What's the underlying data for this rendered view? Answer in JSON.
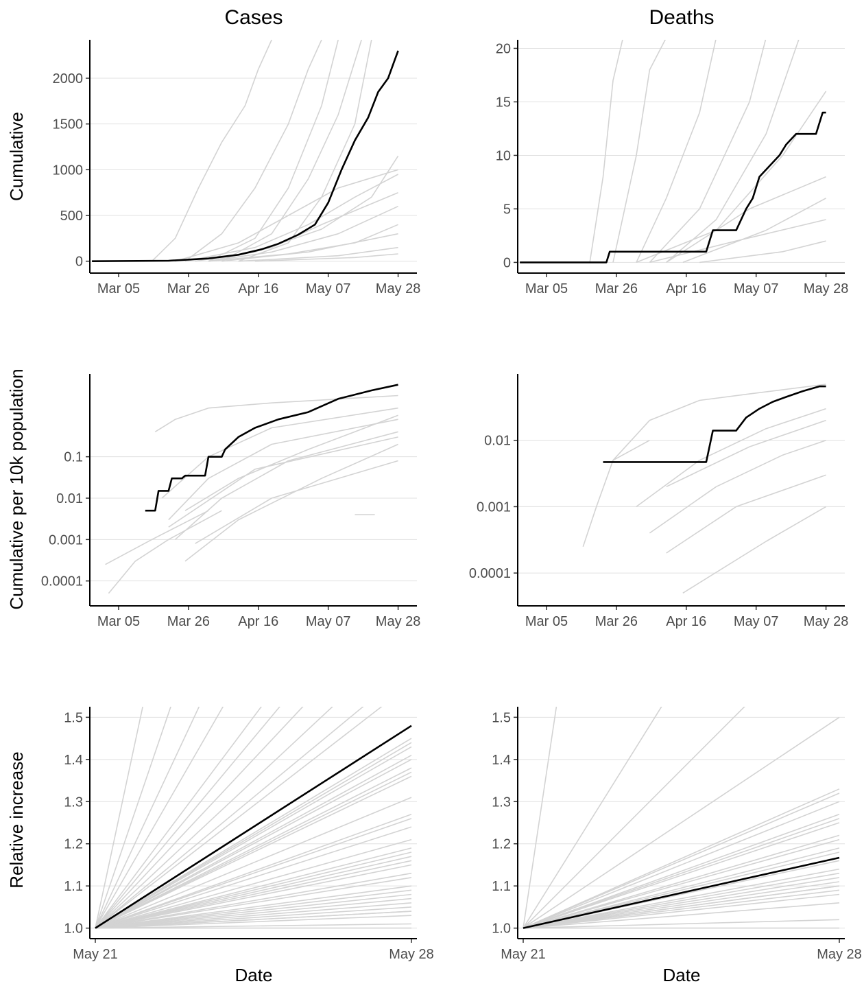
{
  "columns": [
    "Cases",
    "Deaths"
  ],
  "rows": [
    "Cumulative",
    "Cumulative per 10k population",
    "Relative increase"
  ],
  "xlabel": "Date",
  "colors": {
    "highlight": "#000000",
    "background_series": "#d3d3d3",
    "grid": "#e0e0e0"
  },
  "chart_data": [
    {
      "type": "line",
      "row": "Cumulative",
      "column": "Cases",
      "x_ticks": [
        "Mar 05",
        "Mar 26",
        "Apr 16",
        "May 07",
        "May 28"
      ],
      "xlim": [
        "2020-02-27",
        "2020-06-01"
      ],
      "y_ticks": [
        0,
        500,
        1000,
        1500,
        2000
      ],
      "ylim": [
        -130,
        2420
      ],
      "log_y": false,
      "grid": "horizontal",
      "highlight": {
        "x": [
          "2020-02-26",
          "2020-03-20",
          "2020-04-01",
          "2020-04-10",
          "2020-04-17",
          "2020-04-22",
          "2020-04-28",
          "2020-05-03",
          "2020-05-07",
          "2020-05-11",
          "2020-05-15",
          "2020-05-19",
          "2020-05-22",
          "2020-05-25",
          "2020-05-27",
          "2020-05-28"
        ],
        "y": [
          0,
          5,
          30,
          70,
          130,
          190,
          290,
          400,
          640,
          1000,
          1320,
          1570,
          1850,
          2000,
          2200,
          2300
        ]
      },
      "background": [
        {
          "x": [
            "2020-03-15",
            "2020-03-22",
            "2020-03-29",
            "2020-04-05",
            "2020-04-12",
            "2020-04-16",
            "2020-04-20"
          ],
          "y": [
            0,
            250,
            800,
            1300,
            1700,
            2100,
            2420
          ]
        },
        {
          "x": [
            "2020-03-25",
            "2020-04-05",
            "2020-04-15",
            "2020-04-25",
            "2020-05-01",
            "2020-05-05"
          ],
          "y": [
            0,
            300,
            800,
            1500,
            2100,
            2420
          ]
        },
        {
          "x": [
            "2020-04-01",
            "2020-04-15",
            "2020-04-25",
            "2020-05-05",
            "2020-05-10"
          ],
          "y": [
            0,
            250,
            800,
            1700,
            2420
          ]
        },
        {
          "x": [
            "2020-04-05",
            "2020-04-20",
            "2020-05-01",
            "2020-05-10",
            "2020-05-17"
          ],
          "y": [
            0,
            300,
            900,
            1600,
            2420
          ]
        },
        {
          "x": [
            "2020-04-10",
            "2020-04-25",
            "2020-05-05",
            "2020-05-15",
            "2020-05-20"
          ],
          "y": [
            0,
            200,
            700,
            1500,
            2420
          ]
        },
        {
          "x": [
            "2020-03-22",
            "2020-04-10",
            "2020-04-25",
            "2020-05-10",
            "2020-05-28"
          ],
          "y": [
            0,
            200,
            500,
            800,
            1000
          ]
        },
        {
          "x": [
            "2020-03-25",
            "2020-04-15",
            "2020-05-01",
            "2020-05-15",
            "2020-05-28"
          ],
          "y": [
            0,
            150,
            400,
            700,
            950
          ]
        },
        {
          "x": [
            "2020-03-28",
            "2020-04-15",
            "2020-05-05",
            "2020-05-20",
            "2020-05-28"
          ],
          "y": [
            0,
            100,
            350,
            700,
            1150
          ]
        },
        {
          "x": [
            "2020-04-01",
            "2020-04-20",
            "2020-05-05",
            "2020-05-28"
          ],
          "y": [
            0,
            150,
            400,
            750
          ]
        },
        {
          "x": [
            "2020-04-01",
            "2020-04-20",
            "2020-05-10",
            "2020-05-28"
          ],
          "y": [
            0,
            100,
            300,
            600
          ]
        },
        {
          "x": [
            "2020-04-01",
            "2020-04-25",
            "2020-05-15",
            "2020-05-28"
          ],
          "y": [
            0,
            80,
            200,
            400
          ]
        },
        {
          "x": [
            "2020-04-05",
            "2020-05-01",
            "2020-05-28"
          ],
          "y": [
            0,
            100,
            300
          ]
        },
        {
          "x": [
            "2020-04-10",
            "2020-05-10",
            "2020-05-28"
          ],
          "y": [
            0,
            60,
            150
          ]
        },
        {
          "x": [
            "2020-04-15",
            "2020-05-15",
            "2020-05-28"
          ],
          "y": [
            0,
            40,
            80
          ]
        }
      ]
    },
    {
      "type": "line",
      "row": "Cumulative",
      "column": "Deaths",
      "x_ticks": [
        "Mar 05",
        "Mar 26",
        "Apr 16",
        "May 07",
        "May 28"
      ],
      "xlim": [
        "2020-02-27",
        "2020-06-01"
      ],
      "y_ticks": [
        0,
        5,
        10,
        15,
        20
      ],
      "ylim": [
        -1,
        20.8
      ],
      "log_y": false,
      "grid": "horizontal",
      "highlight": {
        "x": [
          "2020-02-26",
          "2020-03-23",
          "2020-03-24",
          "2020-04-22",
          "2020-04-24",
          "2020-05-01",
          "2020-05-04",
          "2020-05-06",
          "2020-05-08",
          "2020-05-11",
          "2020-05-14",
          "2020-05-16",
          "2020-05-19",
          "2020-05-25",
          "2020-05-27",
          "2020-05-28"
        ],
        "y": [
          0,
          0,
          1,
          1,
          3,
          3,
          5,
          6,
          8,
          9,
          10,
          11,
          12,
          12,
          14,
          14
        ]
      },
      "background": [
        {
          "x": [
            "2020-03-18",
            "2020-03-22",
            "2020-03-25",
            "2020-03-28",
            "2020-03-30"
          ],
          "y": [
            0,
            8,
            17,
            21,
            21
          ]
        },
        {
          "x": [
            "2020-03-25",
            "2020-04-01",
            "2020-04-05",
            "2020-04-10"
          ],
          "y": [
            0,
            10,
            18,
            21
          ]
        },
        {
          "x": [
            "2020-04-01",
            "2020-04-10",
            "2020-04-20",
            "2020-04-25"
          ],
          "y": [
            0,
            6,
            14,
            21
          ]
        },
        {
          "x": [
            "2020-04-05",
            "2020-04-20",
            "2020-05-05",
            "2020-05-10"
          ],
          "y": [
            0,
            5,
            15,
            21
          ]
        },
        {
          "x": [
            "2020-04-10",
            "2020-04-25",
            "2020-05-10",
            "2020-05-20"
          ],
          "y": [
            0,
            4,
            12,
            21
          ]
        },
        {
          "x": [
            "2020-04-01",
            "2020-04-25",
            "2020-05-15",
            "2020-05-28"
          ],
          "y": [
            0,
            3,
            10,
            16
          ]
        },
        {
          "x": [
            "2020-04-10",
            "2020-05-05",
            "2020-05-28"
          ],
          "y": [
            0,
            5,
            8
          ]
        },
        {
          "x": [
            "2020-04-15",
            "2020-05-10",
            "2020-05-28"
          ],
          "y": [
            0,
            3,
            6
          ]
        },
        {
          "x": [
            "2020-04-05",
            "2020-05-01",
            "2020-05-28"
          ],
          "y": [
            0,
            2,
            4
          ]
        },
        {
          "x": [
            "2020-04-20",
            "2020-05-15",
            "2020-05-28"
          ],
          "y": [
            0,
            1,
            2
          ]
        }
      ]
    },
    {
      "type": "line",
      "row": "Cumulative per 10k population",
      "column": "Cases",
      "x_ticks": [
        "Mar 05",
        "Mar 26",
        "Apr 16",
        "May 07",
        "May 28"
      ],
      "xlim": [
        "2020-02-27",
        "2020-06-01"
      ],
      "y_ticks": [
        0.0001,
        0.001,
        0.01,
        0.1
      ],
      "y_tick_labels": [
        "0.0001",
        "0.001",
        "0.01",
        "0.1"
      ],
      "ylim": [
        2.5e-05,
        10
      ],
      "log_y": true,
      "grid": "horizontal",
      "highlight": {
        "x": [
          "2020-03-13",
          "2020-03-16",
          "2020-03-17",
          "2020-03-20",
          "2020-03-21",
          "2020-03-24",
          "2020-03-25",
          "2020-03-31",
          "2020-04-01",
          "2020-04-05",
          "2020-04-06",
          "2020-04-10",
          "2020-04-15",
          "2020-04-22",
          "2020-05-01",
          "2020-05-10",
          "2020-05-20",
          "2020-05-28"
        ],
        "y": [
          0.005,
          0.005,
          0.015,
          0.015,
          0.03,
          0.03,
          0.035,
          0.035,
          0.1,
          0.1,
          0.15,
          0.3,
          0.5,
          0.8,
          1.2,
          2.5,
          4.0,
          5.5
        ]
      },
      "background": [
        {
          "x": [
            "2020-03-16",
            "2020-03-22",
            "2020-04-01",
            "2020-04-20",
            "2020-05-28"
          ],
          "y": [
            0.4,
            0.8,
            1.5,
            2.0,
            3.0
          ]
        },
        {
          "x": [
            "2020-03-18",
            "2020-04-01",
            "2020-04-20",
            "2020-05-28"
          ],
          "y": [
            0.01,
            0.1,
            0.5,
            1.5
          ]
        },
        {
          "x": [
            "2020-03-20",
            "2020-04-01",
            "2020-04-20",
            "2020-05-28"
          ],
          "y": [
            0.003,
            0.03,
            0.2,
            0.8
          ]
        },
        {
          "x": [
            "2020-03-22",
            "2020-04-05",
            "2020-04-25",
            "2020-05-28"
          ],
          "y": [
            0.001,
            0.01,
            0.08,
            0.4
          ]
        },
        {
          "x": [
            "2020-03-25",
            "2020-04-10",
            "2020-05-05",
            "2020-05-28"
          ],
          "y": [
            0.0003,
            0.003,
            0.03,
            0.2
          ]
        },
        {
          "x": [
            "2020-03-25",
            "2020-04-10",
            "2020-05-01",
            "2020-05-28"
          ],
          "y": [
            0.005,
            0.03,
            0.15,
            1.0
          ]
        },
        {
          "x": [
            "2020-03-20",
            "2020-04-15",
            "2020-05-28"
          ],
          "y": [
            0.002,
            0.05,
            0.3
          ]
        },
        {
          "x": [
            "2020-03-28",
            "2020-04-20",
            "2020-05-28"
          ],
          "y": [
            0.0008,
            0.01,
            0.08
          ]
        },
        {
          "x": [
            "2020-03-02",
            "2020-03-10",
            "2020-03-20",
            "2020-04-05"
          ],
          "y": [
            5e-05,
            0.0003,
            0.001,
            0.005
          ]
        },
        {
          "x": [
            "2020-03-01",
            "2020-03-15",
            "2020-04-01"
          ],
          "y": [
            0.00025,
            0.001,
            0.005
          ]
        },
        {
          "x": [
            "2020-05-15",
            "2020-05-21"
          ],
          "y": [
            0.004,
            0.004
          ]
        }
      ]
    },
    {
      "type": "line",
      "row": "Cumulative per 10k population",
      "column": "Deaths",
      "x_ticks": [
        "Mar 05",
        "Mar 26",
        "Apr 16",
        "May 07",
        "May 28"
      ],
      "xlim": [
        "2020-02-27",
        "2020-06-01"
      ],
      "y_ticks": [
        0.0001,
        0.001,
        0.01
      ],
      "y_tick_labels": [
        "0.0001",
        "0.001",
        "0.01"
      ],
      "ylim": [
        3.2e-05,
        0.1
      ],
      "log_y": true,
      "grid": "horizontal",
      "highlight": {
        "x": [
          "2020-03-22",
          "2020-04-22",
          "2020-04-24",
          "2020-05-01",
          "2020-05-04",
          "2020-05-08",
          "2020-05-12",
          "2020-05-16",
          "2020-05-21",
          "2020-05-26",
          "2020-05-28"
        ],
        "y": [
          0.0047,
          0.0047,
          0.014,
          0.014,
          0.022,
          0.03,
          0.038,
          0.045,
          0.055,
          0.065,
          0.065
        ]
      },
      "background": [
        {
          "x": [
            "2020-03-16",
            "2020-03-20",
            "2020-03-25",
            "2020-04-05"
          ],
          "y": [
            0.00025,
            0.001,
            0.005,
            0.01
          ]
        },
        {
          "x": [
            "2020-03-25",
            "2020-04-05",
            "2020-04-20",
            "2020-05-05",
            "2020-05-28"
          ],
          "y": [
            0.005,
            0.02,
            0.04,
            0.05,
            0.07
          ]
        },
        {
          "x": [
            "2020-04-01",
            "2020-04-20",
            "2020-05-10",
            "2020-05-28"
          ],
          "y": [
            0.001,
            0.005,
            0.015,
            0.03
          ]
        },
        {
          "x": [
            "2020-04-05",
            "2020-04-25",
            "2020-05-15",
            "2020-05-28"
          ],
          "y": [
            0.0004,
            0.002,
            0.006,
            0.01
          ]
        },
        {
          "x": [
            "2020-04-10",
            "2020-05-01",
            "2020-05-28"
          ],
          "y": [
            0.0002,
            0.001,
            0.003
          ]
        },
        {
          "x": [
            "2020-04-15",
            "2020-05-10",
            "2020-05-28"
          ],
          "y": [
            5e-05,
            0.0003,
            0.001
          ]
        },
        {
          "x": [
            "2020-04-10",
            "2020-05-05",
            "2020-05-28"
          ],
          "y": [
            0.002,
            0.008,
            0.02
          ]
        }
      ]
    },
    {
      "type": "line",
      "row": "Relative increase",
      "column": "Cases",
      "x_ticks": [
        "May 21",
        "May 28"
      ],
      "xlim": [
        "2020-05-21",
        "2020-05-28"
      ],
      "y_ticks": [
        1.0,
        1.1,
        1.2,
        1.3,
        1.4,
        1.5
      ],
      "y_tick_labels": [
        "1.0",
        "1.1",
        "1.2",
        "1.3",
        "1.4",
        "1.5"
      ],
      "ylim": [
        0.975,
        1.525
      ],
      "log_y": false,
      "grid": "horizontal",
      "highlight": {
        "x": [
          "2020-05-21",
          "2020-05-28"
        ],
        "y": [
          1.0,
          1.48
        ]
      },
      "background_start": 1.0,
      "background_end": [
        4.5,
        3.2,
        2.6,
        2.3,
        2.0,
        1.9,
        1.8,
        1.7,
        1.62,
        1.58,
        1.45,
        1.44,
        1.43,
        1.41,
        1.4,
        1.38,
        1.37,
        1.36,
        1.31,
        1.27,
        1.26,
        1.24,
        1.21,
        1.19,
        1.18,
        1.17,
        1.16,
        1.15,
        1.13,
        1.12,
        1.1,
        1.09,
        1.08,
        1.07,
        1.06,
        1.05,
        1.04,
        1.04,
        1.03,
        1.01,
        1.0
      ]
    },
    {
      "type": "line",
      "row": "Relative increase",
      "column": "Deaths",
      "x_ticks": [
        "May 21",
        "May 28"
      ],
      "xlim": [
        "2020-05-21",
        "2020-05-28"
      ],
      "y_ticks": [
        1.0,
        1.1,
        1.2,
        1.3,
        1.4,
        1.5
      ],
      "y_tick_labels": [
        "1.0",
        "1.1",
        "1.2",
        "1.3",
        "1.4",
        "1.5"
      ],
      "ylim": [
        0.975,
        1.525
      ],
      "log_y": false,
      "grid": "horizontal",
      "highlight": {
        "x": [
          "2020-05-21",
          "2020-05-28"
        ],
        "y": [
          1.0,
          1.167
        ]
      },
      "background_start": 1.0,
      "background_end": [
        6.0,
        2.2,
        1.75,
        1.5,
        1.33,
        1.32,
        1.3,
        1.27,
        1.26,
        1.25,
        1.22,
        1.21,
        1.19,
        1.18,
        1.16,
        1.14,
        1.13,
        1.12,
        1.11,
        1.1,
        1.1,
        1.09,
        1.08,
        1.06,
        1.02,
        1.0
      ]
    }
  ]
}
